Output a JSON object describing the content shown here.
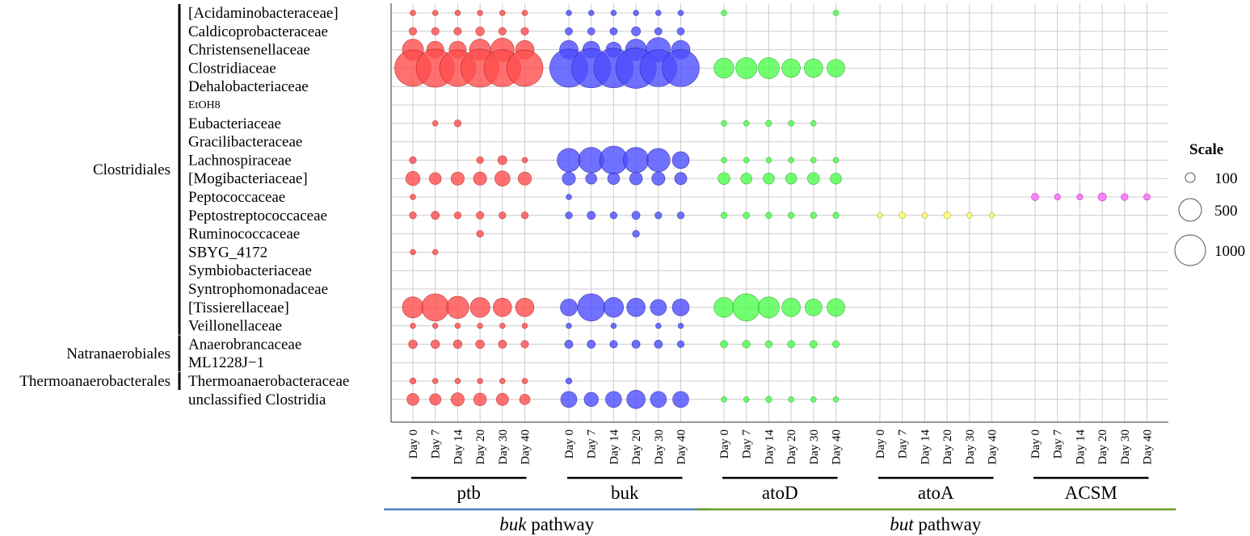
{
  "chart_data": {
    "type": "bubble",
    "title": "",
    "xlabel": "",
    "ylabel": "",
    "grid": true,
    "days": [
      "Day 0",
      "Day 7",
      "Day 14",
      "Day 20",
      "Day 30",
      "Day 40"
    ],
    "families": [
      "[Acidaminobacteraceae]",
      "Caldicoprobacteraceae",
      "Christensenellaceae",
      "Clostridiaceae",
      "Dehalobacteriaceae",
      "EtOH8",
      "Eubacteriaceae",
      "Gracilibacteraceae",
      "Lachnospiraceae",
      "[Mogibacteriaceae]",
      "Peptococcaceae",
      "Peptostreptococcaceae",
      "Ruminococcaceae",
      "SBYG_4172",
      "Symbiobacteriaceae",
      "Syntrophomonadaceae",
      "[Tissierellaceae]",
      "Veillonellaceae",
      "Anaerobrancaceae",
      "ML1228J−1",
      "Thermoanaerobacteraceae",
      "unclassified Clostridia"
    ],
    "orders": [
      {
        "name": "Clostridiales",
        "first_row": 0,
        "last_row": 17
      },
      {
        "name": "Natranaerobiales",
        "first_row": 18,
        "last_row": 19
      },
      {
        "name": "Thermoanaerobacterales",
        "first_row": 20,
        "last_row": 20
      }
    ],
    "genes": [
      {
        "name": "ptb",
        "color": "#ff4d4d",
        "stroke": "#b02020"
      },
      {
        "name": "buk",
        "color": "#4d4dff",
        "stroke": "#2020a0"
      },
      {
        "name": "atoD",
        "color": "#4dff4d",
        "stroke": "#20a020"
      },
      {
        "name": "atoA",
        "color": "#ffff66",
        "stroke": "#9a9a20"
      },
      {
        "name": "ACSM",
        "color": "#ff66ff",
        "stroke": "#a020a0"
      }
    ],
    "pathways": [
      {
        "name_italic": "buk",
        "name_rest": " pathway",
        "genes": [
          "ptb",
          "buk"
        ],
        "color": "#4a7fc1"
      },
      {
        "name_italic": "but",
        "name_rest": " pathway",
        "genes": [
          "atoD",
          "atoA",
          "ACSM"
        ],
        "color": "#6a9a2a"
      }
    ],
    "legend": {
      "title": "Scale",
      "values": [
        100,
        500,
        1000
      ],
      "position": "right"
    },
    "series": [
      {
        "gene": "ptb",
        "values": [
          [
            5,
            5,
            5,
            5,
            5,
            5
          ],
          [
            30,
            30,
            30,
            50,
            30,
            30
          ],
          [
            700,
            400,
            400,
            700,
            900,
            500
          ],
          [
            2500,
            2800,
            2500,
            2800,
            2600,
            2500
          ],
          [
            0,
            0,
            0,
            0,
            0,
            0
          ],
          [
            0,
            0,
            0,
            0,
            0,
            0
          ],
          [
            0,
            5,
            20,
            0,
            0,
            0
          ],
          [
            0,
            0,
            0,
            0,
            0,
            0
          ],
          [
            20,
            0,
            0,
            20,
            60,
            5
          ],
          [
            250,
            150,
            200,
            200,
            300,
            200
          ],
          [
            5,
            0,
            0,
            0,
            0,
            0
          ],
          [
            20,
            40,
            20,
            30,
            20,
            20
          ],
          [
            0,
            0,
            0,
            20,
            0,
            0
          ],
          [
            5,
            5,
            0,
            0,
            0,
            0
          ],
          [
            0,
            0,
            0,
            0,
            0,
            0
          ],
          [
            0,
            0,
            0,
            0,
            0,
            0
          ],
          [
            700,
            1300,
            800,
            600,
            500,
            500
          ],
          [
            5,
            5,
            5,
            5,
            5,
            5
          ],
          [
            50,
            50,
            50,
            50,
            40,
            30
          ],
          [
            0,
            0,
            0,
            0,
            0,
            0
          ],
          [
            10,
            5,
            5,
            5,
            5,
            5
          ],
          [
            150,
            130,
            200,
            180,
            160,
            100
          ]
        ]
      },
      {
        "gene": "buk",
        "values": [
          [
            5,
            5,
            5,
            5,
            5,
            5
          ],
          [
            25,
            25,
            25,
            60,
            25,
            25
          ],
          [
            500,
            400,
            300,
            700,
            1000,
            500
          ],
          [
            2800,
            3000,
            3000,
            3200,
            2600,
            2600
          ],
          [
            0,
            0,
            0,
            0,
            0,
            0
          ],
          [
            0,
            0,
            0,
            0,
            0,
            0
          ],
          [
            0,
            0,
            0,
            0,
            0,
            0
          ],
          [
            0,
            0,
            0,
            0,
            0,
            0
          ],
          [
            900,
            1100,
            1400,
            1100,
            900,
            400
          ],
          [
            200,
            120,
            150,
            180,
            200,
            160
          ],
          [
            5,
            0,
            0,
            0,
            0,
            0
          ],
          [
            20,
            40,
            20,
            40,
            20,
            20
          ],
          [
            0,
            0,
            0,
            20,
            0,
            0
          ],
          [
            0,
            0,
            0,
            0,
            0,
            0
          ],
          [
            0,
            0,
            0,
            0,
            0,
            0
          ],
          [
            0,
            0,
            0,
            0,
            0,
            0
          ],
          [
            400,
            1300,
            600,
            500,
            350,
            400
          ],
          [
            5,
            0,
            5,
            0,
            5,
            5
          ],
          [
            40,
            40,
            30,
            40,
            40,
            20
          ],
          [
            0,
            0,
            0,
            0,
            0,
            0
          ],
          [
            10,
            0,
            0,
            0,
            0,
            0
          ],
          [
            350,
            250,
            350,
            500,
            350,
            350
          ]
        ]
      },
      {
        "gene": "atoD",
        "values": [
          [
            5,
            0,
            0,
            0,
            0,
            5
          ],
          [
            0,
            0,
            0,
            0,
            0,
            0
          ],
          [
            0,
            0,
            0,
            0,
            0,
            0
          ],
          [
            600,
            700,
            700,
            500,
            500,
            450
          ],
          [
            0,
            0,
            0,
            0,
            0,
            0
          ],
          [
            0,
            0,
            0,
            0,
            0,
            0
          ],
          [
            5,
            5,
            10,
            5,
            5,
            0
          ],
          [
            0,
            0,
            0,
            0,
            0,
            0
          ],
          [
            5,
            5,
            5,
            5,
            5,
            5
          ],
          [
            150,
            120,
            120,
            120,
            150,
            120
          ],
          [
            0,
            0,
            0,
            0,
            0,
            0
          ],
          [
            10,
            15,
            10,
            10,
            10,
            10
          ],
          [
            0,
            0,
            0,
            0,
            0,
            0
          ],
          [
            0,
            0,
            0,
            0,
            0,
            0
          ],
          [
            0,
            0,
            0,
            0,
            0,
            0
          ],
          [
            0,
            0,
            0,
            0,
            0,
            0
          ],
          [
            600,
            1300,
            700,
            500,
            400,
            450
          ],
          [
            0,
            0,
            0,
            0,
            0,
            0
          ],
          [
            25,
            30,
            20,
            25,
            25,
            20
          ],
          [
            0,
            0,
            0,
            0,
            0,
            0
          ],
          [
            0,
            0,
            0,
            0,
            0,
            0
          ],
          [
            5,
            5,
            10,
            5,
            5,
            5
          ]
        ]
      },
      {
        "gene": "atoA",
        "values": [
          [
            0,
            0,
            0,
            0,
            0,
            0
          ],
          [
            0,
            0,
            0,
            0,
            0,
            0
          ],
          [
            0,
            0,
            0,
            0,
            0,
            0
          ],
          [
            0,
            0,
            0,
            0,
            0,
            0
          ],
          [
            0,
            0,
            0,
            0,
            0,
            0
          ],
          [
            0,
            0,
            0,
            0,
            0,
            0
          ],
          [
            0,
            0,
            0,
            0,
            0,
            0
          ],
          [
            0,
            0,
            0,
            0,
            0,
            0
          ],
          [
            0,
            0,
            0,
            0,
            0,
            0
          ],
          [
            0,
            0,
            0,
            0,
            0,
            0
          ],
          [
            0,
            0,
            0,
            0,
            0,
            0
          ],
          [
            5,
            15,
            5,
            20,
            5,
            5
          ],
          [
            0,
            0,
            0,
            0,
            0,
            0
          ],
          [
            0,
            0,
            0,
            0,
            0,
            0
          ],
          [
            0,
            0,
            0,
            0,
            0,
            0
          ],
          [
            0,
            0,
            0,
            0,
            0,
            0
          ],
          [
            0,
            0,
            0,
            0,
            0,
            0
          ],
          [
            0,
            0,
            0,
            0,
            0,
            0
          ],
          [
            0,
            0,
            0,
            0,
            0,
            0
          ],
          [
            0,
            0,
            0,
            0,
            0,
            0
          ],
          [
            0,
            0,
            0,
            0,
            0,
            0
          ],
          [
            0,
            0,
            0,
            0,
            0,
            0
          ]
        ]
      },
      {
        "gene": "ACSM",
        "values": [
          [
            0,
            0,
            0,
            0,
            0,
            0
          ],
          [
            0,
            0,
            0,
            0,
            0,
            0
          ],
          [
            0,
            0,
            0,
            0,
            0,
            0
          ],
          [
            0,
            0,
            0,
            0,
            0,
            0
          ],
          [
            0,
            0,
            0,
            0,
            0,
            0
          ],
          [
            0,
            0,
            0,
            0,
            0,
            0
          ],
          [
            0,
            0,
            0,
            0,
            0,
            0
          ],
          [
            0,
            0,
            0,
            0,
            0,
            0
          ],
          [
            0,
            0,
            0,
            0,
            0,
            0
          ],
          [
            0,
            0,
            0,
            0,
            0,
            0
          ],
          [
            25,
            10,
            10,
            40,
            20,
            15
          ],
          [
            0,
            0,
            0,
            0,
            0,
            0
          ],
          [
            0,
            0,
            0,
            0,
            0,
            0
          ],
          [
            0,
            0,
            0,
            0,
            0,
            0
          ],
          [
            0,
            0,
            0,
            0,
            0,
            0
          ],
          [
            0,
            0,
            0,
            0,
            0,
            0
          ],
          [
            0,
            0,
            0,
            0,
            0,
            0
          ],
          [
            0,
            0,
            0,
            0,
            0,
            0
          ],
          [
            0,
            0,
            0,
            0,
            0,
            0
          ],
          [
            0,
            0,
            0,
            0,
            0,
            0
          ],
          [
            0,
            0,
            0,
            0,
            0,
            0
          ],
          [
            0,
            0,
            0,
            0,
            0,
            0
          ]
        ]
      }
    ]
  }
}
